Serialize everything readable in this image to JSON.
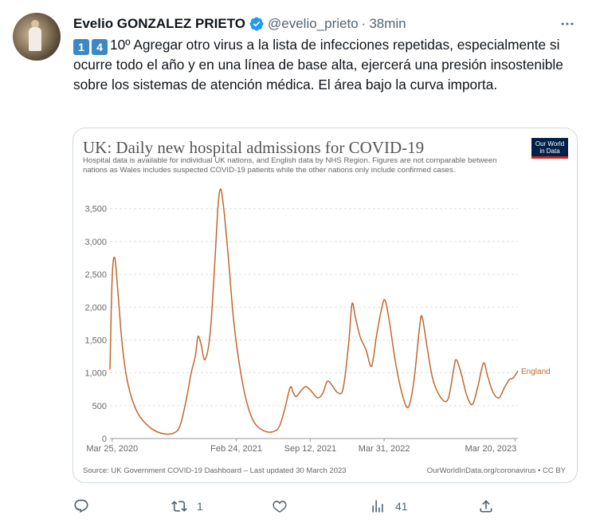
{
  "tweet": {
    "author_name": "Evelio GONZALEZ PRIETO",
    "handle": "@evelio_prieto",
    "separator": "·",
    "time": "38min",
    "keycap_1": "1",
    "keycap_2": "4",
    "text_after_keycaps": "10º Agregar otro virus a la lista de infecciones repetidas, especialmente si ocurre todo el año y en una línea de base alta, ejercerá una presión insostenible sobre los sistemas de atención médica. El área bajo la curva importa.",
    "icons": {
      "verified": "verified-badge-icon",
      "more": "more-options-icon",
      "reply": "reply-icon",
      "retweet": "retweet-icon",
      "like": "like-icon",
      "views": "views-icon",
      "share": "share-icon"
    },
    "counts": {
      "retweets": "1",
      "views": "41"
    },
    "accent_color": "#1d9bf0"
  },
  "card": {
    "logo_line1": "Our World",
    "logo_line2": "in Data"
  },
  "chart_data": {
    "type": "line",
    "title": "UK: Daily new hospital admissions for COVID-19",
    "subtitle": "Hospital data is available for individual UK nations, and English data by NHS Region. Figures are not comparable between nations as Wales includes suspected COVID-19 patients while the other nations only include confirmed cases.",
    "x_tick_labels": [
      "Mar 25, 2020",
      "Feb 24, 2021",
      "Sep 12, 2021",
      "Mar 31, 2022",
      "Mar 20, 2023"
    ],
    "y_tick_labels": [
      "0",
      "500",
      "1,000",
      "1,500",
      "2,000",
      "2,500",
      "3,000",
      "3,500"
    ],
    "ylim": [
      0,
      3800
    ],
    "grid": true,
    "series": [
      {
        "name": "England",
        "color": "#c0682f",
        "points": [
          [
            "2020-03-19",
            1050
          ],
          [
            "2020-03-25",
            2450
          ],
          [
            "2020-04-01",
            2750
          ],
          [
            "2020-04-10",
            2200
          ],
          [
            "2020-04-20",
            1500
          ],
          [
            "2020-05-01",
            1000
          ],
          [
            "2020-05-15",
            650
          ],
          [
            "2020-06-01",
            400
          ],
          [
            "2020-06-20",
            250
          ],
          [
            "2020-07-15",
            130
          ],
          [
            "2020-08-15",
            70
          ],
          [
            "2020-09-10",
            90
          ],
          [
            "2020-09-25",
            200
          ],
          [
            "2020-10-10",
            550
          ],
          [
            "2020-10-25",
            1000
          ],
          [
            "2020-11-05",
            1250
          ],
          [
            "2020-11-12",
            1550
          ],
          [
            "2020-11-20",
            1450
          ],
          [
            "2020-12-01",
            1200
          ],
          [
            "2020-12-15",
            1600
          ],
          [
            "2020-12-28",
            2700
          ],
          [
            "2021-01-05",
            3500
          ],
          [
            "2021-01-12",
            3800
          ],
          [
            "2021-01-20",
            3550
          ],
          [
            "2021-02-01",
            2850
          ],
          [
            "2021-02-15",
            1900
          ],
          [
            "2021-03-01",
            1250
          ],
          [
            "2021-03-20",
            650
          ],
          [
            "2021-04-10",
            280
          ],
          [
            "2021-05-05",
            130
          ],
          [
            "2021-06-01",
            100
          ],
          [
            "2021-06-20",
            180
          ],
          [
            "2021-07-05",
            450
          ],
          [
            "2021-07-20",
            780
          ],
          [
            "2021-07-28",
            700
          ],
          [
            "2021-08-05",
            640
          ],
          [
            "2021-08-20",
            740
          ],
          [
            "2021-09-01",
            790
          ],
          [
            "2021-09-15",
            720
          ],
          [
            "2021-10-01",
            620
          ],
          [
            "2021-10-15",
            680
          ],
          [
            "2021-10-28",
            870
          ],
          [
            "2021-11-10",
            810
          ],
          [
            "2021-11-25",
            700
          ],
          [
            "2021-12-10",
            760
          ],
          [
            "2021-12-25",
            1450
          ],
          [
            "2022-01-03",
            2050
          ],
          [
            "2022-01-12",
            1850
          ],
          [
            "2022-01-25",
            1550
          ],
          [
            "2022-02-10",
            1350
          ],
          [
            "2022-02-25",
            1100
          ],
          [
            "2022-03-10",
            1550
          ],
          [
            "2022-03-25",
            2000
          ],
          [
            "2022-04-03",
            2100
          ],
          [
            "2022-04-15",
            1750
          ],
          [
            "2022-05-01",
            1150
          ],
          [
            "2022-05-20",
            650
          ],
          [
            "2022-06-05",
            480
          ],
          [
            "2022-06-20",
            900
          ],
          [
            "2022-07-05",
            1700
          ],
          [
            "2022-07-12",
            1850
          ],
          [
            "2022-07-25",
            1400
          ],
          [
            "2022-08-10",
            900
          ],
          [
            "2022-09-01",
            620
          ],
          [
            "2022-09-20",
            600
          ],
          [
            "2022-10-05",
            1050
          ],
          [
            "2022-10-12",
            1200
          ],
          [
            "2022-10-25",
            1000
          ],
          [
            "2022-11-10",
            650
          ],
          [
            "2022-11-25",
            520
          ],
          [
            "2022-12-10",
            800
          ],
          [
            "2022-12-25",
            1150
          ],
          [
            "2023-01-05",
            950
          ],
          [
            "2023-01-20",
            700
          ],
          [
            "2023-02-05",
            620
          ],
          [
            "2023-02-20",
            780
          ],
          [
            "2023-03-05",
            900
          ],
          [
            "2023-03-15",
            920
          ],
          [
            "2023-03-28",
            1030
          ]
        ]
      }
    ],
    "source": "Source: UK Government COVID-19 Dashboard – Last updated 30 March 2023",
    "license": "OurWorldInData.org/coronavirus • CC BY"
  }
}
